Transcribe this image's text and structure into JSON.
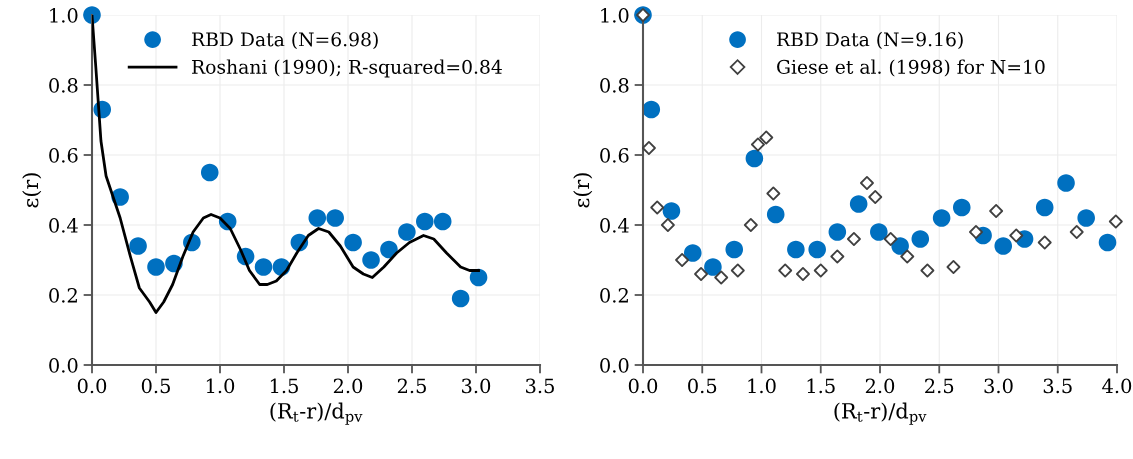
{
  "chart_data": [
    {
      "type": "scatter",
      "xlabel": "(R$_{t}$-r)/d$_{pv}$",
      "ylabel": "ε(r)",
      "grid": true,
      "legend": "top",
      "xlim": [
        0,
        3.5
      ],
      "ylim": [
        0,
        1.0
      ],
      "xticks": [
        {
          "value": 0,
          "label": "0.0"
        },
        {
          "value": 0.5,
          "label": "0.5"
        },
        {
          "value": 1.0,
          "label": "1.0"
        },
        {
          "value": 1.5,
          "label": "1.5"
        },
        {
          "value": 2.0,
          "label": "2.0"
        },
        {
          "value": 2.5,
          "label": "2.5"
        },
        {
          "value": 3.0,
          "label": "3.0"
        },
        {
          "value": 3.5,
          "label": "3.5"
        }
      ],
      "yticks": [
        {
          "value": 0,
          "label": "0.0"
        },
        {
          "value": 0.2,
          "label": "0.2"
        },
        {
          "value": 0.4,
          "label": "0.4"
        },
        {
          "value": 0.6,
          "label": "0.6"
        },
        {
          "value": 0.8,
          "label": "0.8"
        },
        {
          "value": 1.0,
          "label": "1.0"
        }
      ],
      "series": [
        {
          "name": "RBD Data (N=6.98)",
          "type": "scatter",
          "marker": "circle",
          "color": "#0070c0",
          "x": [
            0,
            0.08,
            0.22,
            0.36,
            0.5,
            0.64,
            0.78,
            0.92,
            1.06,
            1.2,
            1.34,
            1.48,
            1.62,
            1.76,
            1.9,
            2.04,
            2.18,
            2.32,
            2.46,
            2.6,
            2.74,
            2.88,
            3.02
          ],
          "values": [
            1.0,
            0.73,
            0.48,
            0.34,
            0.28,
            0.29,
            0.35,
            0.55,
            0.41,
            0.31,
            0.28,
            0.28,
            0.35,
            0.42,
            0.42,
            0.35,
            0.3,
            0.33,
            0.38,
            0.41,
            0.41,
            0.19,
            0.25
          ]
        },
        {
          "name": "Roshani (1990); R-squared=0.84",
          "type": "line",
          "marker": "none",
          "line_style": "solid",
          "color": "#000000",
          "x": [
            0,
            0.03,
            0.07,
            0.11,
            0.22,
            0.3,
            0.37,
            0.45,
            0.5,
            0.56,
            0.63,
            0.71,
            0.79,
            0.87,
            0.93,
            1.0,
            1.08,
            1.16,
            1.23,
            1.31,
            1.37,
            1.44,
            1.52,
            1.6,
            1.69,
            1.77,
            1.85,
            1.94,
            2.04,
            2.12,
            2.19,
            2.28,
            2.38,
            2.48,
            2.59,
            2.67,
            2.77,
            2.88,
            2.95,
            3.02
          ],
          "values": [
            1.0,
            0.85,
            0.64,
            0.54,
            0.42,
            0.31,
            0.22,
            0.18,
            0.15,
            0.18,
            0.23,
            0.31,
            0.38,
            0.42,
            0.43,
            0.42,
            0.39,
            0.33,
            0.27,
            0.23,
            0.23,
            0.24,
            0.27,
            0.32,
            0.37,
            0.39,
            0.38,
            0.34,
            0.28,
            0.26,
            0.25,
            0.28,
            0.32,
            0.35,
            0.37,
            0.36,
            0.32,
            0.28,
            0.27,
            0.27
          ]
        }
      ]
    },
    {
      "type": "scatter",
      "xlabel": "(R$_{t}$-r)/d$_{pv}$",
      "ylabel": "ε(r)",
      "grid": true,
      "legend": "top",
      "xlim": [
        0,
        4.0
      ],
      "ylim": [
        0,
        1.0
      ],
      "xticks": [
        {
          "value": 0,
          "label": "0.0"
        },
        {
          "value": 0.5,
          "label": "0.5"
        },
        {
          "value": 1.0,
          "label": "1.0"
        },
        {
          "value": 1.5,
          "label": "1.5"
        },
        {
          "value": 2.0,
          "label": "2.0"
        },
        {
          "value": 2.5,
          "label": "2.5"
        },
        {
          "value": 3.0,
          "label": "3.0"
        },
        {
          "value": 3.5,
          "label": "3.5"
        },
        {
          "value": 4.0,
          "label": "4.0"
        }
      ],
      "yticks": [
        {
          "value": 0,
          "label": "0.0"
        },
        {
          "value": 0.2,
          "label": "0.2"
        },
        {
          "value": 0.4,
          "label": "0.4"
        },
        {
          "value": 0.6,
          "label": "0.6"
        },
        {
          "value": 0.8,
          "label": "0.8"
        },
        {
          "value": 1.0,
          "label": "1.0"
        }
      ],
      "series": [
        {
          "name": "RBD Data (N=9.16)",
          "type": "scatter",
          "marker": "circle",
          "color": "#0070c0",
          "x": [
            0,
            0.07,
            0.24,
            0.42,
            0.59,
            0.77,
            0.94,
            1.12,
            1.29,
            1.47,
            1.64,
            1.82,
            1.99,
            2.17,
            2.34,
            2.52,
            2.69,
            2.87,
            3.04,
            3.22,
            3.39,
            3.57,
            3.74,
            3.92
          ],
          "values": [
            1.0,
            0.73,
            0.44,
            0.32,
            0.28,
            0.33,
            0.59,
            0.43,
            0.33,
            0.33,
            0.38,
            0.46,
            0.38,
            0.34,
            0.36,
            0.42,
            0.45,
            0.37,
            0.34,
            0.36,
            0.45,
            0.52,
            0.42,
            0.35
          ]
        },
        {
          "name": "Giese et al. (1998) for N=10",
          "type": "scatter",
          "marker": "diamond",
          "color": "#404040",
          "x": [
            0,
            0.05,
            0.12,
            0.21,
            0.33,
            0.49,
            0.66,
            0.8,
            0.91,
            0.97,
            1.04,
            1.1,
            1.2,
            1.35,
            1.5,
            1.64,
            1.78,
            1.89,
            1.96,
            2.09,
            2.23,
            2.4,
            2.62,
            2.81,
            2.98,
            3.15,
            3.39,
            3.66,
            3.99
          ],
          "values": [
            1.0,
            0.62,
            0.45,
            0.4,
            0.3,
            0.26,
            0.25,
            0.27,
            0.4,
            0.63,
            0.65,
            0.49,
            0.27,
            0.26,
            0.27,
            0.31,
            0.36,
            0.52,
            0.48,
            0.36,
            0.31,
            0.27,
            0.28,
            0.38,
            0.44,
            0.37,
            0.35,
            0.38,
            0.41
          ]
        }
      ]
    }
  ]
}
